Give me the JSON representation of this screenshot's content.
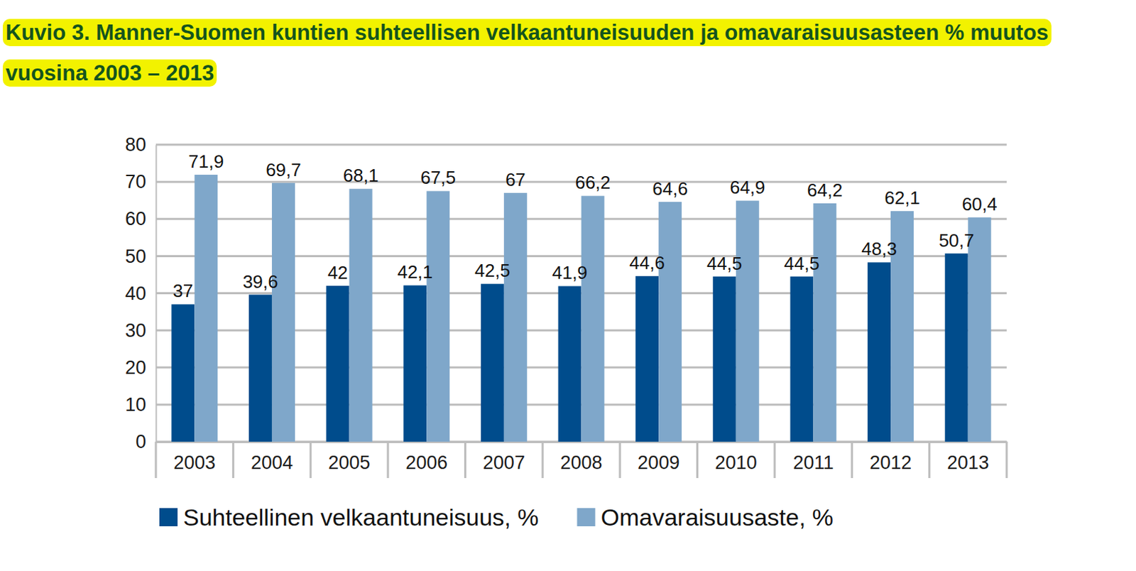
{
  "chart_data": {
    "type": "bar",
    "title": "Kuvio 3. Manner-Suomen kuntien suhteellisen velkaantuneisuuden ja omavaraisuusasteen % muutos vuosina 2003 – 2013",
    "categories": [
      "2003",
      "2004",
      "2005",
      "2006",
      "2007",
      "2008",
      "2009",
      "2010",
      "2011",
      "2012",
      "2013"
    ],
    "series": [
      {
        "name": "Suhteellinen velkaantuneisuus, %",
        "color": "#004c8c",
        "values": [
          37,
          39.6,
          42,
          42.1,
          42.5,
          41.9,
          44.6,
          44.5,
          44.5,
          48.3,
          50.7
        ],
        "value_labels": [
          "37",
          "39,6",
          "42",
          "42,1",
          "42,5",
          "41,9",
          "44,6",
          "44,5",
          "44,5",
          "48,3",
          "50,7"
        ]
      },
      {
        "name": "Omavaraisuusaste, %",
        "color": "#7fa7ca",
        "values": [
          71.9,
          69.7,
          68.1,
          67.5,
          67,
          66.2,
          64.6,
          64.9,
          64.2,
          62.1,
          60.4
        ],
        "value_labels": [
          "71,9",
          "69,7",
          "68,1",
          "67,5",
          "67",
          "66,2",
          "64,6",
          "64,9",
          "64,2",
          "62,1",
          "60,4"
        ]
      }
    ],
    "ylim": [
      0,
      80
    ],
    "yticks": [
      0,
      10,
      20,
      30,
      40,
      50,
      60,
      70,
      80
    ],
    "grid": true,
    "data_labels": true,
    "legend": "bottom"
  }
}
